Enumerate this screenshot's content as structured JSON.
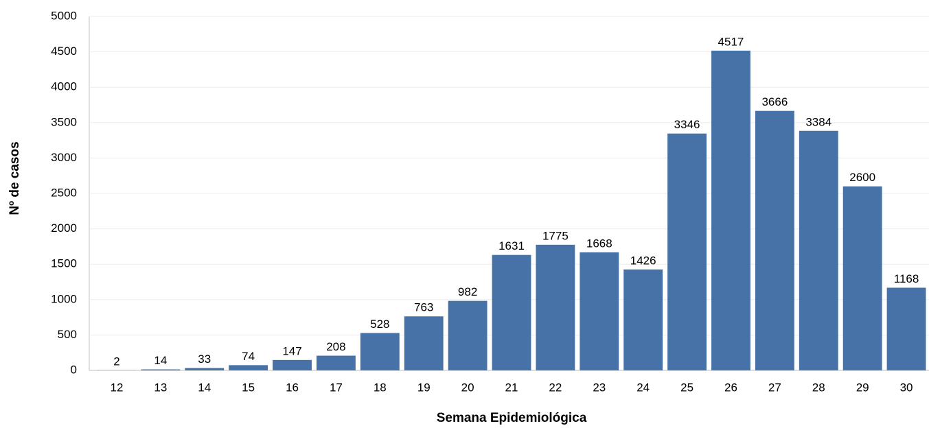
{
  "chart_data": {
    "type": "bar",
    "x_label": "Semana Epidemiológica",
    "y_label": "Nº de casos",
    "categories": [
      "12",
      "13",
      "14",
      "15",
      "16",
      "17",
      "18",
      "19",
      "20",
      "21",
      "22",
      "23",
      "24",
      "25",
      "26",
      "27",
      "28",
      "29",
      "30"
    ],
    "values": [
      2,
      14,
      33,
      74,
      147,
      208,
      528,
      763,
      982,
      1631,
      1775,
      1668,
      1426,
      3346,
      4517,
      3666,
      3384,
      2600,
      1168
    ],
    "color": "#4672a8",
    "ylim": [
      0,
      5000
    ],
    "yticks": [
      0,
      500,
      1000,
      1500,
      2000,
      2500,
      3000,
      3500,
      4000,
      4500,
      5000
    ],
    "grid": true
  }
}
